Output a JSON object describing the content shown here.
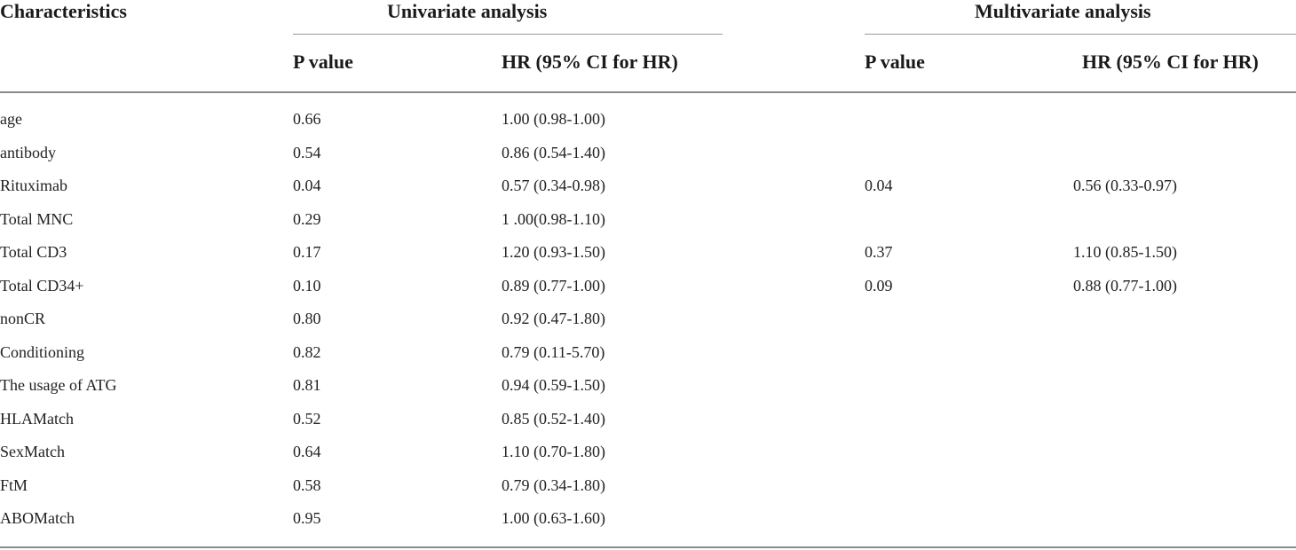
{
  "table": {
    "header": {
      "characteristics": "Characteristics",
      "univariate": "Univariate analysis",
      "multivariate": "Multivariate analysis",
      "uni_p": "P value",
      "uni_hr": "HR (95% CI for HR)",
      "multi_p": "P value",
      "multi_hr": "HR (95% CI for HR)"
    },
    "rows": [
      {
        "name": "age",
        "uni_p": "0.66",
        "uni_hr": "1.00 (0.98-1.00)",
        "multi_p": "",
        "multi_hr": ""
      },
      {
        "name": "antibody",
        "uni_p": "0.54",
        "uni_hr": "0.86 (0.54-1.40)",
        "multi_p": "",
        "multi_hr": ""
      },
      {
        "name": "Rituximab",
        "uni_p": "0.04",
        "uni_hr": "0.57 (0.34-0.98)",
        "multi_p": "0.04",
        "multi_hr": "0.56 (0.33-0.97)"
      },
      {
        "name": "Total MNC",
        "uni_p": "0.29",
        "uni_hr": "1 .00(0.98-1.10)",
        "multi_p": "",
        "multi_hr": ""
      },
      {
        "name": "Total CD3",
        "uni_p": "0.17",
        "uni_hr": "1.20 (0.93-1.50)",
        "multi_p": "0.37",
        "multi_hr": "1.10 (0.85-1.50)"
      },
      {
        "name": "Total CD34+",
        "uni_p": "0.10",
        "uni_hr": "0.89 (0.77-1.00)",
        "multi_p": "0.09",
        "multi_hr": "0.88 (0.77-1.00)"
      },
      {
        "name": "nonCR",
        "uni_p": "0.80",
        "uni_hr": "0.92 (0.47-1.80)",
        "multi_p": "",
        "multi_hr": ""
      },
      {
        "name": "Conditioning",
        "uni_p": "0.82",
        "uni_hr": "0.79 (0.11-5.70)",
        "multi_p": "",
        "multi_hr": ""
      },
      {
        "name": "The usage of ATG",
        "uni_p": "0.81",
        "uni_hr": "0.94 (0.59-1.50)",
        "multi_p": "",
        "multi_hr": ""
      },
      {
        "name": "HLAMatch",
        "uni_p": "0.52",
        "uni_hr": "0.85 (0.52-1.40)",
        "multi_p": "",
        "multi_hr": ""
      },
      {
        "name": "SexMatch",
        "uni_p": "0.64",
        "uni_hr": "1.10 (0.70-1.80)",
        "multi_p": "",
        "multi_hr": ""
      },
      {
        "name": "FtM",
        "uni_p": "0.58",
        "uni_hr": "0.79 (0.34-1.80)",
        "multi_p": "",
        "multi_hr": ""
      },
      {
        "name": "ABOMatch",
        "uni_p": "0.95",
        "uni_hr": "1.00 (0.63-1.60)",
        "multi_p": "",
        "multi_hr": ""
      }
    ]
  }
}
